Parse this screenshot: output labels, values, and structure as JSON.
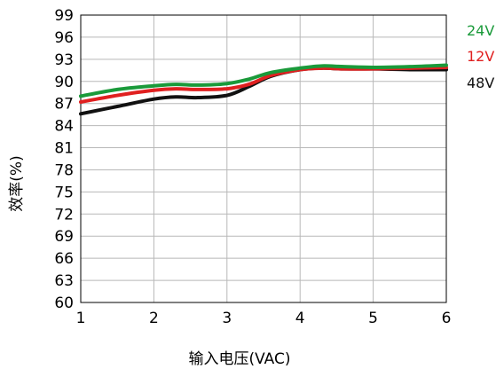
{
  "chart_data": {
    "type": "line",
    "title": "",
    "xlabel": "输入电压(VAC)",
    "ylabel": "效率(%)",
    "xlim": [
      1,
      6
    ],
    "ylim": [
      60,
      100
    ],
    "grid": true,
    "legend_position": "right",
    "x_ticks": [
      "1",
      "2",
      "3",
      "4",
      "5",
      "6"
    ],
    "y_ticks": [
      "99",
      "96",
      "93",
      "90",
      "87",
      "84",
      "81",
      "78",
      "75",
      "72",
      "69",
      "66",
      "63",
      "60"
    ],
    "series": [
      {
        "name": "24V",
        "color": "#1a9a3a",
        "x": [
          1,
          1.5,
          2,
          2.3,
          2.6,
          3,
          3.3,
          3.6,
          4,
          4.3,
          4.6,
          5,
          5.5,
          6
        ],
        "y": [
          88.0,
          88.9,
          89.4,
          89.6,
          89.5,
          89.7,
          90.3,
          91.2,
          91.8,
          92.1,
          92.0,
          91.9,
          92.0,
          92.2
        ]
      },
      {
        "name": "12V",
        "color": "#e02020",
        "x": [
          1,
          1.5,
          2,
          2.3,
          2.6,
          3,
          3.3,
          3.6,
          4,
          4.3,
          4.6,
          5,
          5.5,
          6
        ],
        "y": [
          87.2,
          88.1,
          88.8,
          89.0,
          88.9,
          89.0,
          89.6,
          90.8,
          91.6,
          91.8,
          91.7,
          91.7,
          91.8,
          91.9
        ]
      },
      {
        "name": "48V",
        "color": "#111111",
        "x": [
          1,
          1.5,
          2,
          2.3,
          2.6,
          3,
          3.3,
          3.6,
          4,
          4.3,
          4.6,
          5,
          5.5,
          6
        ],
        "y": [
          85.6,
          86.6,
          87.6,
          87.9,
          87.8,
          88.1,
          89.3,
          90.7,
          91.6,
          91.8,
          91.7,
          91.7,
          91.6,
          91.6
        ]
      }
    ],
    "legend": [
      {
        "label": "24V",
        "color": "#1a9a3a"
      },
      {
        "label": "12V",
        "color": "#e02020"
      },
      {
        "label": "48V",
        "color": "#111111"
      }
    ]
  }
}
